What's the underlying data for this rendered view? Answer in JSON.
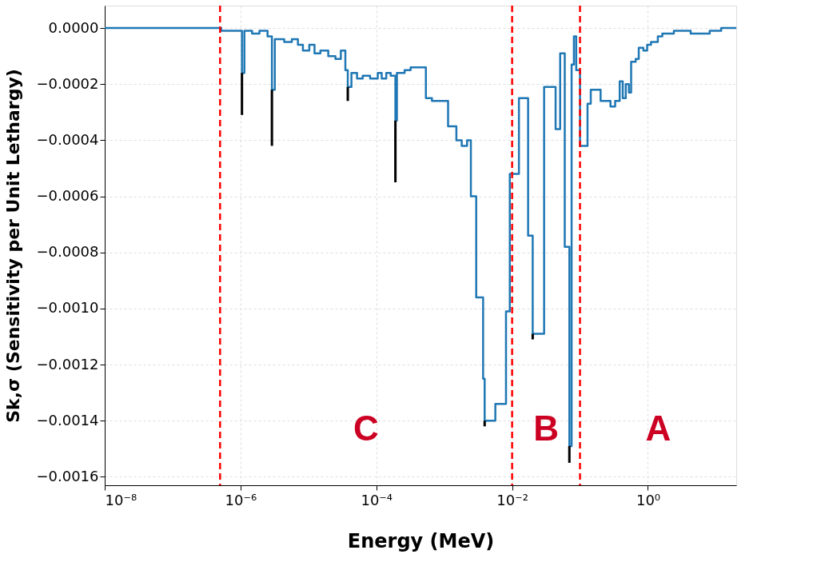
{
  "chart_data": {
    "type": "step",
    "xlabel": "Energy (MeV)",
    "ylabel": "Sk,σ (Sensitivity per Unit Lethargy)",
    "log": "x",
    "grid": true,
    "legend": false,
    "marker": "none",
    "line_style": "solid",
    "xlim": [
      1e-08,
      20
    ],
    "ylim": [
      -0.00163,
      8e-05
    ],
    "xticks": [
      {
        "value": 1e-08,
        "label": "10⁻⁸"
      },
      {
        "value": 1e-06,
        "label": "10⁻⁶"
      },
      {
        "value": 0.0001,
        "label": "10⁻⁴"
      },
      {
        "value": 0.01,
        "label": "10⁻²"
      },
      {
        "value": 1,
        "label": "10⁰"
      }
    ],
    "yticks": [
      {
        "value": 0,
        "label": "0.0000"
      },
      {
        "value": -0.0002,
        "label": "−0.0002"
      },
      {
        "value": -0.0004,
        "label": "−0.0004"
      },
      {
        "value": -0.0006,
        "label": "−0.0006"
      },
      {
        "value": -0.0008,
        "label": "−0.0008"
      },
      {
        "value": -0.001,
        "label": "−0.0010"
      },
      {
        "value": -0.0012,
        "label": "−0.0012"
      },
      {
        "value": -0.0014,
        "label": "−0.0014"
      },
      {
        "value": -0.0016,
        "label": "−0.0016"
      }
    ],
    "x": [
      1e-08,
      4.05e-07,
      5.2e-07,
      7.1e-07,
      9.7e-07,
      1.05e-06,
      1.14e-06,
      1.48e-06,
      1.9e-06,
      2.5e-06,
      2.9e-06,
      3.2e-06,
      4.4e-06,
      5.7e-06,
      7e-06,
      8.3e-06,
      1.03e-05,
      1.23e-05,
      1.5e-05,
      1.96e-05,
      2.5e-05,
      3e-05,
      3.5e-05,
      3.8e-05,
      4.3e-05,
      5.2e-05,
      6.3e-05,
      8.1e-05,
      0.000105,
      0.00012,
      0.00014,
      0.000163,
      0.000191,
      0.000201,
      0.000261,
      0.00032,
      0.000537,
      0.00066,
      0.00114,
      0.00151,
      0.00181,
      0.00217,
      0.00247,
      0.00296,
      0.00374,
      0.00394,
      0.00566,
      0.00813,
      0.00925,
      0.0126,
      0.0172,
      0.0201,
      0.0296,
      0.0437,
      0.051,
      0.0596,
      0.0697,
      0.0752,
      0.0813,
      0.0879,
      0.1,
      0.129,
      0.144,
      0.201,
      0.281,
      0.329,
      0.384,
      0.426,
      0.472,
      0.524,
      0.566,
      0.661,
      0.733,
      0.857,
      0.975,
      1.11,
      1.4,
      1.63,
      2.41,
      4.26,
      6.28,
      8.13,
      12.0,
      20
    ],
    "series": [
      {
        "color": "#1f77b4",
        "values": [
          0,
          0,
          -1e-05,
          -1e-05,
          -1e-05,
          -0.00016,
          -1e-05,
          -2e-05,
          -1e-05,
          -3e-05,
          -0.00022,
          -4e-05,
          -5e-05,
          -4e-05,
          -6e-05,
          -8e-05,
          -6e-05,
          -9e-05,
          -8e-05,
          -0.0001,
          -0.00011,
          -8e-05,
          -0.00015,
          -0.00021,
          -0.00016,
          -0.00018,
          -0.00017,
          -0.00018,
          -0.00016,
          -0.00018,
          -0.00016,
          -0.00017,
          -0.00033,
          -0.00016,
          -0.00015,
          -0.00014,
          -0.00025,
          -0.00026,
          -0.00035,
          -0.0004,
          -0.00042,
          -0.0004,
          -0.0006,
          -0.00096,
          -0.00125,
          -0.0014,
          -0.00134,
          -0.00101,
          -0.00052,
          -0.00025,
          -0.00074,
          -0.00109,
          -0.00021,
          -0.00036,
          -9e-05,
          -0.00078,
          -0.00149,
          -0.00013,
          -3e-05,
          -0.00015,
          -0.00042,
          -0.00027,
          -0.00022,
          -0.00026,
          -0.00028,
          -0.00026,
          -0.00019,
          -0.00025,
          -0.0002,
          -0.00023,
          -0.00012,
          -0.00011,
          -7e-05,
          -8e-05,
          -6e-05,
          -5e-05,
          -3e-05,
          -2e-05,
          -1e-05,
          -2e-05,
          -2e-05,
          -1e-05,
          0,
          0
        ],
        "errors": [
          null,
          null,
          null,
          null,
          null,
          [
            -0.00031,
            -0.00016
          ],
          null,
          null,
          null,
          null,
          [
            -0.00042,
            -0.00022
          ],
          null,
          null,
          null,
          null,
          null,
          null,
          null,
          null,
          null,
          null,
          null,
          null,
          [
            -0.00026,
            -0.00021
          ],
          null,
          null,
          null,
          null,
          null,
          null,
          null,
          null,
          [
            -0.00055,
            -0.00033
          ],
          null,
          null,
          null,
          null,
          null,
          null,
          null,
          null,
          null,
          null,
          null,
          null,
          [
            -0.00142,
            -0.0014
          ],
          null,
          null,
          null,
          null,
          null,
          [
            -0.00111,
            -0.00109
          ],
          null,
          null,
          null,
          null,
          [
            -0.00155,
            -0.00149
          ],
          null,
          null,
          null,
          null,
          null,
          null,
          null,
          null,
          null,
          null,
          null,
          null,
          null,
          null,
          null,
          null,
          null,
          null,
          null,
          null,
          null,
          null,
          null,
          null,
          null,
          null,
          null
        ]
      }
    ],
    "ref_lines": [
      {
        "axis": "x",
        "value": 5e-07,
        "color": "#ff0000",
        "line_style": "dashed"
      },
      {
        "axis": "x",
        "value": 0.01,
        "color": "#ff0000",
        "line_style": "dashed"
      },
      {
        "axis": "x",
        "value": 0.1,
        "color": "#ff0000",
        "line_style": "dashed"
      }
    ],
    "annotations": [
      "C",
      "B",
      "A"
    ]
  }
}
